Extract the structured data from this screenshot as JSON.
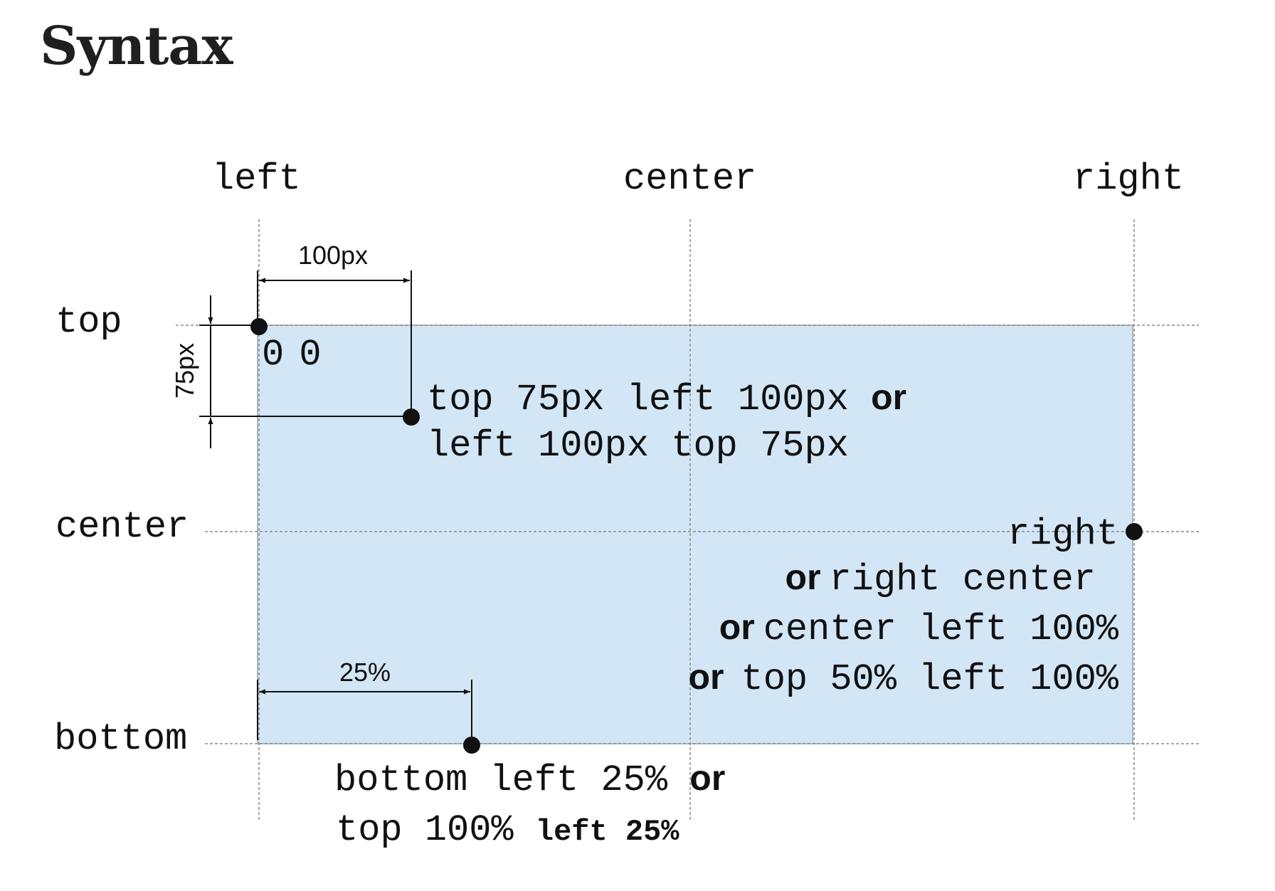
{
  "heading": "Syntax",
  "diagram": {
    "box_fill": "#d2e6f5",
    "columns": {
      "left": "left",
      "center": "center",
      "right": "right"
    },
    "rows": {
      "top": "top",
      "center": "center",
      "bottom": "bottom"
    },
    "dimensions": {
      "horizontal_offset": "100px",
      "vertical_offset": "75px",
      "bottom_offset": "25%"
    },
    "origin_label": "0 0",
    "point_offset": {
      "line1": "top 75px left 100px",
      "or1": "or",
      "line2": "left 100px top 75px"
    },
    "point_right": {
      "line1": "right",
      "or1": "or",
      "line2": "right center",
      "or2": "or",
      "line3": "center left 100%",
      "or3": "or",
      "line4": "top 50% left 100%"
    },
    "point_bottom": {
      "line1": "bottom left 25%",
      "or1": "or",
      "line2_mono": "top 100%",
      "line2_bold": "left 25%"
    }
  }
}
